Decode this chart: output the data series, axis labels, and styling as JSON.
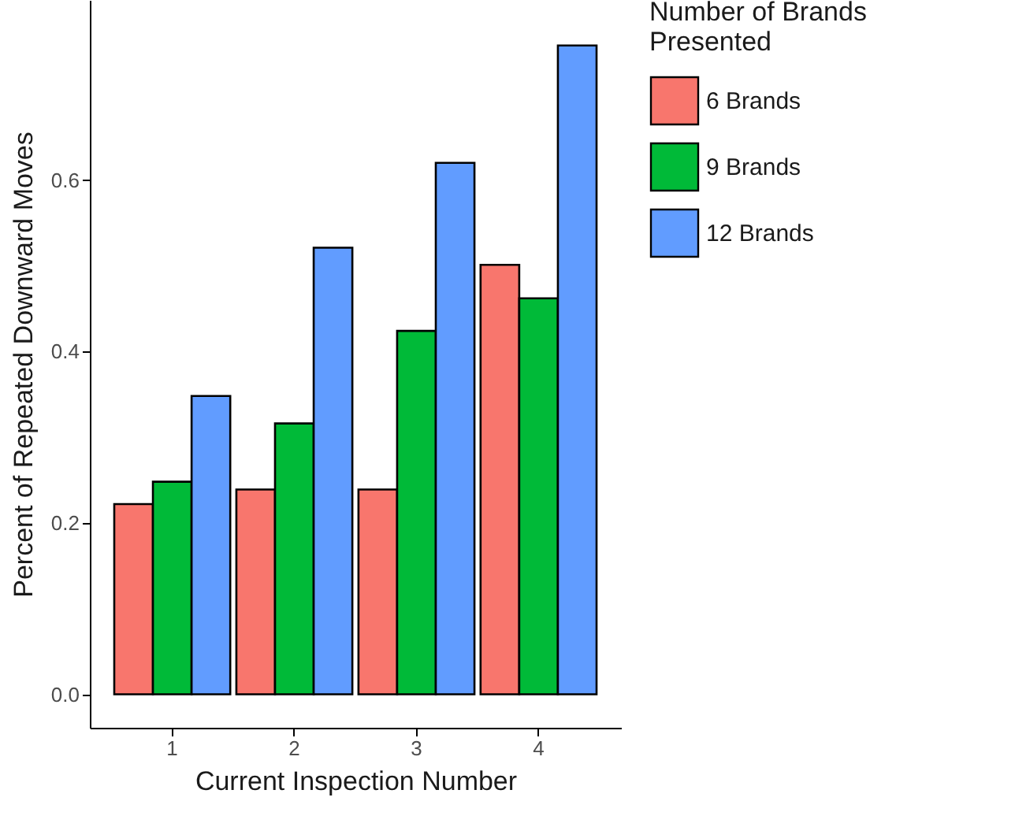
{
  "chart_data": {
    "type": "bar",
    "xlabel": "Current Inspection Number",
    "ylabel": "Percent of Repeated Downward Moves",
    "legend_title": "Number of Brands\nPresented",
    "categories": [
      "1",
      "2",
      "3",
      "4"
    ],
    "series": [
      {
        "name": "6 Brands",
        "color": "#f8766d",
        "values": [
          0.222,
          0.239,
          0.239,
          0.501
        ]
      },
      {
        "name": "9 Brands",
        "color": "#00ba38",
        "values": [
          0.248,
          0.316,
          0.424,
          0.462
        ]
      },
      {
        "name": "12 Brands",
        "color": "#619cff",
        "values": [
          0.348,
          0.521,
          0.62,
          0.757
        ]
      }
    ],
    "ylim": [
      -0.039,
      0.81
    ],
    "yticks": [
      {
        "value": 0,
        "label": "0.0"
      },
      0.2,
      0.4,
      0.6
    ],
    "grid": false,
    "legend": "right"
  }
}
